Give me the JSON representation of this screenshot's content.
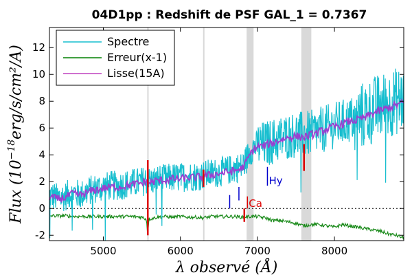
{
  "chart_data": {
    "type": "line",
    "title": "04D1pp : Redshift de PSF GAL_1 = 0.7367",
    "xlabel": "λ observé (Å)",
    "ylabel_prefix": "Flux (10",
    "ylabel_exp": "−18",
    "ylabel_units": "erg/s/cm²/A)",
    "xlim": [
      4300,
      8900
    ],
    "ylim": [
      -2.4,
      13.5
    ],
    "xticks": [
      5000,
      6000,
      7000,
      8000
    ],
    "yticks": [
      -2,
      0,
      2,
      4,
      6,
      8,
      10,
      12
    ],
    "legend_position": "top-left",
    "legend": [
      {
        "label": "Spectre",
        "color": "#17becf"
      },
      {
        "label": "Erreur(x-1)",
        "color": "#008000"
      },
      {
        "label": "Lisse(15A)",
        "color": "#bf40bf"
      }
    ],
    "colors": {
      "spectre": "#17becf",
      "erreur": "#1a8a1a",
      "lisse": "#9b3fd0",
      "sky": "#dd0000",
      "band": "#d9d9d9",
      "lineblue": "#0000cc",
      "linered": "#dd0000"
    },
    "shaded_bands": [
      [
        5570,
        5585
      ],
      [
        6295,
        6310
      ],
      [
        6860,
        6950
      ],
      [
        7570,
        7700
      ]
    ],
    "spectre": {
      "x": [
        4300,
        4400,
        4500,
        4600,
        4700,
        4800,
        4900,
        5000,
        5100,
        5200,
        5300,
        5400,
        5500,
        5550,
        5600,
        5700,
        5800,
        5900,
        6000,
        6100,
        6200,
        6300,
        6400,
        6500,
        6600,
        6700,
        6800,
        6850,
        6900,
        6950,
        7000,
        7100,
        7200,
        7300,
        7400,
        7500,
        7600,
        7700,
        7800,
        7900,
        8000,
        8100,
        8200,
        8300,
        8400,
        8500,
        8600,
        8700,
        8800,
        8900
      ],
      "y": [
        1.0,
        0.8,
        0.9,
        1.2,
        1.0,
        1.3,
        1.5,
        1.6,
        1.7,
        1.7,
        1.8,
        1.9,
        2.0,
        2.1,
        2.0,
        2.2,
        2.2,
        2.3,
        2.3,
        2.4,
        2.4,
        2.5,
        2.6,
        2.7,
        2.8,
        3.0,
        3.1,
        3.6,
        4.2,
        4.6,
        4.7,
        4.8,
        5.0,
        5.2,
        5.4,
        5.5,
        5.5,
        5.6,
        5.8,
        6.0,
        6.2,
        6.4,
        6.6,
        6.8,
        7.0,
        7.3,
        7.6,
        7.8,
        8.0,
        8.2
      ]
    },
    "lisse": {
      "x": [
        4300,
        4400,
        4500,
        4600,
        4700,
        4800,
        4900,
        5000,
        5100,
        5200,
        5300,
        5400,
        5500,
        5550,
        5600,
        5700,
        5800,
        5900,
        6000,
        6100,
        6200,
        6300,
        6400,
        6500,
        6600,
        6700,
        6800,
        6850,
        6900,
        6950,
        7000,
        7100,
        7200,
        7300,
        7400,
        7500,
        7600,
        7700,
        7800,
        7900,
        8000,
        8100,
        8200,
        8300,
        8400,
        8500,
        8600,
        8700,
        8800,
        8900
      ],
      "y": [
        0.9,
        0.7,
        0.8,
        1.1,
        1.0,
        1.2,
        1.4,
        1.5,
        1.6,
        1.6,
        1.7,
        1.8,
        1.9,
        2.0,
        1.9,
        2.1,
        2.1,
        2.2,
        2.2,
        2.3,
        2.3,
        2.4,
        2.5,
        2.6,
        2.7,
        2.8,
        3.0,
        3.4,
        4.0,
        4.4,
        4.6,
        4.7,
        4.9,
        5.1,
        5.3,
        5.4,
        5.3,
        5.5,
        5.7,
        5.9,
        6.1,
        6.3,
        6.5,
        6.6,
        6.8,
        7.1,
        7.3,
        7.5,
        7.7,
        7.9
      ]
    },
    "erreur": {
      "x": [
        4300,
        4400,
        4500,
        4600,
        4700,
        4800,
        4900,
        5000,
        5100,
        5200,
        5300,
        5400,
        5500,
        5560,
        5575,
        5590,
        5700,
        5800,
        5900,
        6000,
        6100,
        6200,
        6300,
        6400,
        6500,
        6600,
        6700,
        6800,
        6900,
        7000,
        7100,
        7200,
        7300,
        7400,
        7500,
        7600,
        7700,
        7800,
        7900,
        8000,
        8100,
        8200,
        8300,
        8400,
        8500,
        8600,
        8700,
        8800,
        8900
      ],
      "y": [
        -0.55,
        -0.55,
        -0.55,
        -0.6,
        -0.6,
        -0.6,
        -0.6,
        -0.6,
        -0.6,
        -0.6,
        -0.6,
        -0.6,
        -0.65,
        -0.8,
        -2.0,
        -0.8,
        -0.65,
        -0.6,
        -0.65,
        -0.6,
        -0.65,
        -0.65,
        -0.7,
        -0.6,
        -0.6,
        -0.6,
        -0.6,
        -0.65,
        -0.6,
        -0.6,
        -0.7,
        -0.9,
        -0.9,
        -1.0,
        -1.1,
        -1.3,
        -1.2,
        -1.2,
        -1.3,
        -1.4,
        -1.2,
        -1.3,
        -1.4,
        -1.5,
        -1.6,
        -1.7,
        -1.9,
        -2.0,
        -2.2
      ]
    },
    "sky_lines": [
      {
        "x": 5577,
        "ymin": -2.0,
        "ymax": 3.6
      },
      {
        "x": 6300,
        "ymin": 1.6,
        "ymax": 2.9
      },
      {
        "x": 6830,
        "ymin": -1.0,
        "ymax": 0.0
      },
      {
        "x": 7605,
        "ymin": 2.8,
        "ymax": 4.8
      }
    ],
    "annotations": [
      {
        "label": "",
        "x": 6640,
        "y": 0.0,
        "color": "#0000cc",
        "marker": true,
        "h": 1.0
      },
      {
        "label": "",
        "x": 6760,
        "y": 0.6,
        "color": "#0000cc",
        "marker": true,
        "h": 1.0
      },
      {
        "label": "Ca",
        "x": 6870,
        "y": 0.0,
        "color": "#dd0000",
        "marker": true,
        "h": 0.9
      },
      {
        "label": "Hy",
        "x": 7130,
        "y": 1.7,
        "color": "#0000cc",
        "marker": true,
        "h": 1.4
      }
    ]
  }
}
